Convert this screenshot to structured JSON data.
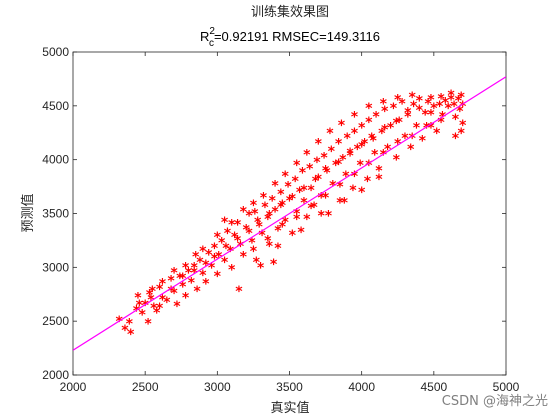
{
  "chart_data": {
    "type": "scatter",
    "title": "训练集效果图",
    "subtitle": {
      "r_prefix": "R",
      "r_superscript": "2",
      "r_subscript": "c",
      "rest": "=0.92191  RMSEC=149.3116"
    },
    "xlabel": "真实值",
    "ylabel": "预测值",
    "xlim": [
      2000,
      5000
    ],
    "ylim": [
      2000,
      5000
    ],
    "xticks": [
      "2000",
      "2500",
      "3000",
      "3500",
      "4000",
      "4500",
      "5000"
    ],
    "yticks": [
      "2000",
      "2500",
      "3000",
      "3500",
      "4000",
      "4500",
      "5000"
    ],
    "grid": false,
    "marker": "*",
    "marker_color": "#ff0000",
    "fit_line": {
      "x": [
        2000,
        5000
      ],
      "y": [
        2230,
        4770
      ],
      "color": "#ff00ff"
    },
    "points": [
      [
        2320,
        2500
      ],
      [
        2360,
        2420
      ],
      [
        2400,
        2380
      ],
      [
        2390,
        2480
      ],
      [
        2440,
        2600
      ],
      [
        2450,
        2720
      ],
      [
        2480,
        2560
      ],
      [
        2500,
        2650
      ],
      [
        2520,
        2480
      ],
      [
        2530,
        2750
      ],
      [
        2560,
        2620
      ],
      [
        2580,
        2580
      ],
      [
        2600,
        2800
      ],
      [
        2620,
        2700
      ],
      [
        2650,
        2680
      ],
      [
        2680,
        2880
      ],
      [
        2700,
        2760
      ],
      [
        2720,
        2640
      ],
      [
        2740,
        2900
      ],
      [
        2760,
        2820
      ],
      [
        2780,
        2720
      ],
      [
        2800,
        2950
      ],
      [
        2820,
        2860
      ],
      [
        2840,
        3000
      ],
      [
        2860,
        2780
      ],
      [
        2880,
        3050
      ],
      [
        2900,
        2930
      ],
      [
        2920,
        2850
      ],
      [
        2940,
        3120
      ],
      [
        2960,
        3000
      ],
      [
        2980,
        3180
      ],
      [
        3000,
        2920
      ],
      [
        3010,
        3100
      ],
      [
        3030,
        3230
      ],
      [
        3050,
        3050
      ],
      [
        3070,
        3320
      ],
      [
        3090,
        3150
      ],
      [
        3100,
        2980
      ],
      [
        3120,
        3280
      ],
      [
        3140,
        3400
      ],
      [
        3150,
        2780
      ],
      [
        3160,
        3200
      ],
      [
        3180,
        3100
      ],
      [
        3200,
        3350
      ],
      [
        3220,
        3480
      ],
      [
        3240,
        3230
      ],
      [
        3260,
        3500
      ],
      [
        3270,
        3050
      ],
      [
        3290,
        3380
      ],
      [
        3310,
        3300
      ],
      [
        3330,
        3560
      ],
      [
        3350,
        3450
      ],
      [
        3360,
        3200
      ],
      [
        3380,
        3620
      ],
      [
        3390,
        3030
      ],
      [
        3400,
        3520
      ],
      [
        3420,
        3340
      ],
      [
        3440,
        3680
      ],
      [
        3450,
        3580
      ],
      [
        3470,
        3420
      ],
      [
        3490,
        3750
      ],
      [
        3500,
        3620
      ],
      [
        3520,
        3300
      ],
      [
        3540,
        3800
      ],
      [
        3550,
        3500
      ],
      [
        3570,
        3700
      ],
      [
        3590,
        3880
      ],
      [
        3600,
        3600
      ],
      [
        3620,
        3450
      ],
      [
        3640,
        3920
      ],
      [
        3650,
        3720
      ],
      [
        3670,
        3560
      ],
      [
        3690,
        3980
      ],
      [
        3700,
        3820
      ],
      [
        3720,
        3650
      ],
      [
        3740,
        4020
      ],
      [
        3750,
        3900
      ],
      [
        3770,
        3480
      ],
      [
        3790,
        4080
      ],
      [
        3800,
        3760
      ],
      [
        3820,
        3950
      ],
      [
        3840,
        4150
      ],
      [
        3850,
        3600
      ],
      [
        3870,
        4000
      ],
      [
        3890,
        3850
      ],
      [
        3900,
        4200
      ],
      [
        3920,
        4060
      ],
      [
        3940,
        3720
      ],
      [
        3950,
        4250
      ],
      [
        3970,
        4100
      ],
      [
        3990,
        3950
      ],
      [
        4000,
        4300
      ],
      [
        4020,
        4150
      ],
      [
        4040,
        3800
      ],
      [
        4050,
        4350
      ],
      [
        4070,
        4200
      ],
      [
        4090,
        4050
      ],
      [
        4100,
        4400
      ],
      [
        4120,
        3900
      ],
      [
        4140,
        4250
      ],
      [
        4160,
        4450
      ],
      [
        4180,
        4100
      ],
      [
        4200,
        4300
      ],
      [
        4220,
        4480
      ],
      [
        4240,
        4000
      ],
      [
        4260,
        4350
      ],
      [
        4280,
        4520
      ],
      [
        4300,
        4200
      ],
      [
        4320,
        4400
      ],
      [
        4340,
        4100
      ],
      [
        4360,
        4500
      ],
      [
        4380,
        4300
      ],
      [
        4400,
        4550
      ],
      [
        4420,
        4180
      ],
      [
        4440,
        4420
      ],
      [
        4460,
        4520
      ],
      [
        4480,
        4300
      ],
      [
        4500,
        4480
      ],
      [
        4520,
        4250
      ],
      [
        4540,
        4500
      ],
      [
        4560,
        4400
      ],
      [
        4580,
        4530
      ],
      [
        4600,
        4480
      ],
      [
        4620,
        4560
      ],
      [
        4640,
        4500
      ],
      [
        4650,
        4380
      ],
      [
        4670,
        4550
      ],
      [
        4680,
        4450
      ],
      [
        4690,
        4250
      ],
      [
        4700,
        4500
      ],
      [
        4690,
        4580
      ],
      [
        4620,
        4600
      ],
      [
        4550,
        4570
      ],
      [
        4480,
        4560
      ],
      [
        4650,
        4200
      ],
      [
        4700,
        4320
      ],
      [
        3100,
        3400
      ],
      [
        3180,
        3520
      ],
      [
        3250,
        3580
      ],
      [
        3320,
        3650
      ],
      [
        3400,
        3760
      ],
      [
        3470,
        3850
      ],
      [
        3550,
        3950
      ],
      [
        3620,
        4050
      ],
      [
        3700,
        4150
      ],
      [
        3780,
        4250
      ],
      [
        3860,
        4320
      ],
      [
        3950,
        4400
      ],
      [
        4050,
        4480
      ],
      [
        4150,
        4520
      ],
      [
        4250,
        4560
      ],
      [
        4350,
        4580
      ],
      [
        2900,
        3150
      ],
      [
        2850,
        3100
      ],
      [
        2780,
        3000
      ],
      [
        2700,
        2950
      ],
      [
        2620,
        2850
      ],
      [
        2550,
        2780
      ],
      [
        3050,
        3420
      ],
      [
        3000,
        3280
      ],
      [
        3250,
        3150
      ],
      [
        3350,
        3250
      ],
      [
        3450,
        3380
      ],
      [
        3550,
        3450
      ],
      [
        3650,
        3550
      ],
      [
        3750,
        3650
      ],
      [
        3850,
        3750
      ],
      [
        3950,
        3850
      ],
      [
        4050,
        3950
      ],
      [
        4150,
        4050
      ],
      [
        4250,
        4150
      ],
      [
        4350,
        4200
      ],
      [
        4450,
        4300
      ],
      [
        4550,
        4350
      ],
      [
        3300,
        3000
      ],
      [
        3420,
        3180
      ],
      [
        3580,
        3330
      ],
      [
        3720,
        3480
      ],
      [
        3880,
        3600
      ],
      [
        4000,
        3700
      ],
      [
        4120,
        3820
      ],
      [
        2460,
        2650
      ],
      [
        2540,
        2700
      ],
      [
        2600,
        2620
      ],
      [
        2680,
        2780
      ],
      [
        2760,
        2900
      ],
      [
        2840,
        2950
      ],
      [
        2920,
        3020
      ],
      [
        2980,
        3080
      ],
      [
        3060,
        3180
      ],
      [
        3140,
        3250
      ],
      [
        3220,
        3320
      ],
      [
        3280,
        3420
      ],
      [
        3360,
        3480
      ],
      [
        3440,
        3560
      ],
      [
        3520,
        3640
      ],
      [
        3600,
        3720
      ],
      [
        3680,
        3800
      ],
      [
        3760,
        3880
      ],
      [
        3840,
        3960
      ],
      [
        3920,
        4040
      ],
      [
        4000,
        4120
      ],
      [
        4080,
        4180
      ],
      [
        4160,
        4280
      ],
      [
        4240,
        4340
      ],
      [
        4320,
        4440
      ],
      [
        4400,
        4460
      ],
      [
        4480,
        4420
      ]
    ]
  },
  "watermark": "CSDN @海神之光",
  "colors": {
    "axis": "#262626",
    "background": "#ffffff"
  }
}
